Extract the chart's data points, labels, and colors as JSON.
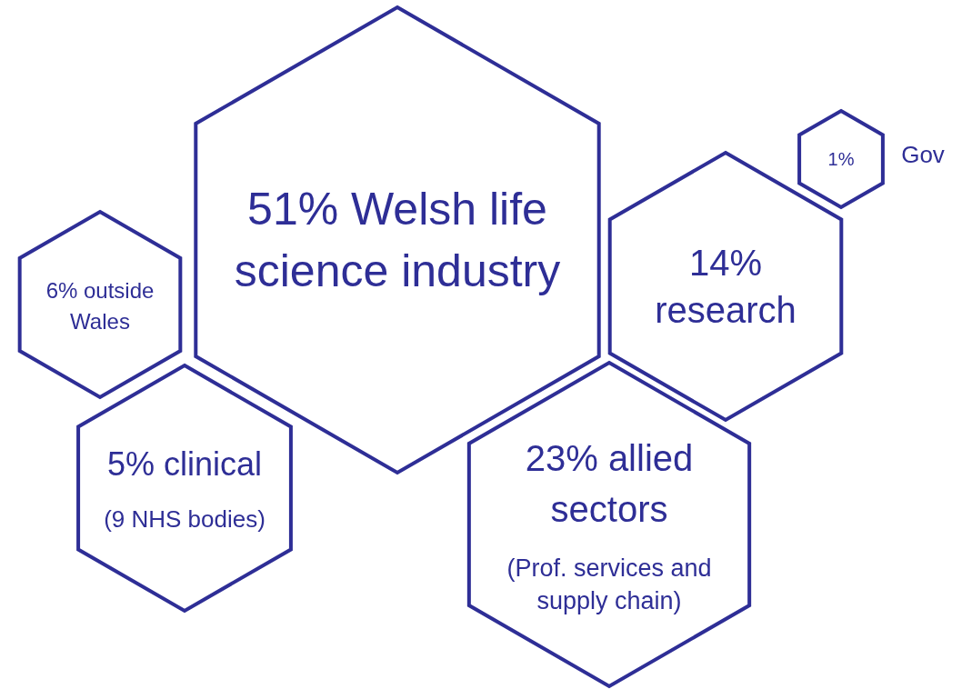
{
  "chart_data": {
    "type": "other",
    "categories": [
      "Welsh life science industry",
      "research",
      "Gov",
      "outside Wales",
      "clinical",
      "allied sectors"
    ],
    "values": [
      51,
      14,
      1,
      6,
      5,
      23
    ],
    "value_labels": [
      "51%",
      "14%",
      "1%",
      "6%",
      "5%",
      "23%"
    ],
    "colors": [
      "#2e2e96",
      "#2e2e96",
      "#2e2e96",
      "#2e2e96",
      "#2e2e96",
      "#2e2e96"
    ],
    "annotations": [
      "(9 NHS bodies)",
      "(Prof. services and supply chain)"
    ]
  }
}
